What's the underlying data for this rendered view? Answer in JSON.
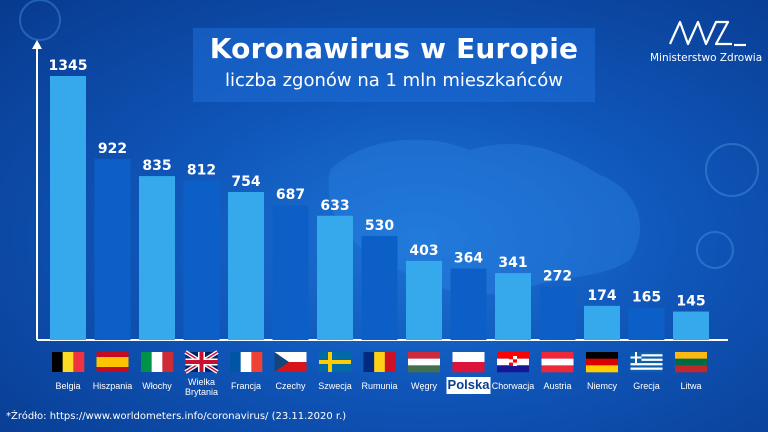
{
  "title": "Koronawirus w Europie",
  "subtitle": "liczba zgonów na 1 mln mieszkańców",
  "logo_text": "Ministerstwo Zdrowia",
  "source": "*Źródło: https://www.worldometers.info/coronavirus/ (23.11.2020 r.)",
  "colors": {
    "bar_light": "#36a8ec",
    "bar_dark": "#0d5fc8",
    "axis": "#ffffff",
    "highlight_label_bg": "#ffffff",
    "highlight_label_text": "#0a3f92"
  },
  "chart_data": {
    "type": "bar",
    "title": "Koronawirus w Europie",
    "subtitle": "liczba zgonów na 1 mln mieszkańców",
    "categories": [
      "Belgia",
      "Hiszpania",
      "Włochy",
      "Wielka Brytania",
      "Francja",
      "Czechy",
      "Szwecja",
      "Rumunia",
      "Węgry",
      "Polska",
      "Chorwacja",
      "Austria",
      "Niemcy",
      "Grecja",
      "Litwa"
    ],
    "values": [
      1345,
      922,
      835,
      812,
      754,
      687,
      633,
      530,
      403,
      364,
      341,
      272,
      174,
      165,
      145
    ],
    "highlight": "Polska",
    "ylim": [
      0,
      1345
    ],
    "flags": [
      {
        "country": "Belgia",
        "type": "vertical",
        "colors": [
          "#000000",
          "#fdda24",
          "#ef3340"
        ]
      },
      {
        "country": "Hiszpania",
        "type": "spain",
        "colors": [
          "#c60b1e",
          "#ffc400"
        ]
      },
      {
        "country": "Włochy",
        "type": "vertical",
        "colors": [
          "#009246",
          "#ffffff",
          "#ce2b37"
        ]
      },
      {
        "country": "Wielka Brytania",
        "type": "uk",
        "colors": [
          "#012169",
          "#ffffff",
          "#c8102e"
        ]
      },
      {
        "country": "Francja",
        "type": "vertical",
        "colors": [
          "#0055a4",
          "#ffffff",
          "#ef4135"
        ]
      },
      {
        "country": "Czechy",
        "type": "czech",
        "colors": [
          "#ffffff",
          "#d7141a",
          "#11457e"
        ]
      },
      {
        "country": "Szwecja",
        "type": "nordic",
        "colors": [
          "#006aa7",
          "#fecc00"
        ]
      },
      {
        "country": "Rumunia",
        "type": "vertical",
        "colors": [
          "#002b7f",
          "#fcd116",
          "#ce1126"
        ]
      },
      {
        "country": "Węgry",
        "type": "horizontal",
        "colors": [
          "#cd2a3e",
          "#ffffff",
          "#436f4d"
        ]
      },
      {
        "country": "Polska",
        "type": "horizontal",
        "colors": [
          "#ffffff",
          "#dc143c"
        ]
      },
      {
        "country": "Chorwacja",
        "type": "croatia",
        "colors": [
          "#ff0000",
          "#ffffff",
          "#171796"
        ]
      },
      {
        "country": "Austria",
        "type": "horizontal",
        "colors": [
          "#ed2939",
          "#ffffff",
          "#ed2939"
        ]
      },
      {
        "country": "Niemcy",
        "type": "horizontal",
        "colors": [
          "#000000",
          "#dd0000",
          "#ffce00"
        ]
      },
      {
        "country": "Grecja",
        "type": "greece",
        "colors": [
          "#0d5eaf",
          "#ffffff"
        ]
      },
      {
        "country": "Litwa",
        "type": "horizontal",
        "colors": [
          "#fdb913",
          "#006a44",
          "#c1272d"
        ]
      }
    ]
  }
}
